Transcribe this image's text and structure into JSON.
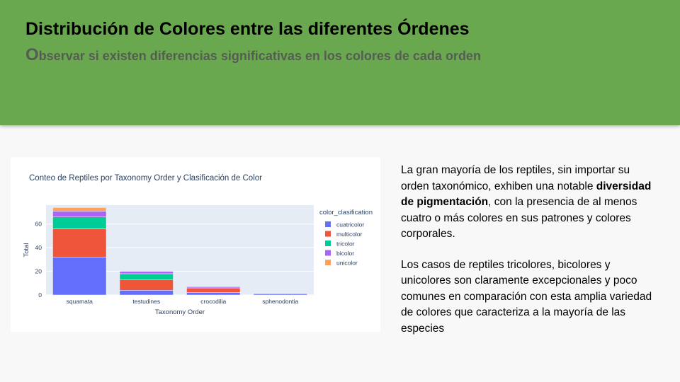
{
  "header": {
    "title": "Distribución de Colores entre las diferentes Órdenes",
    "subtitle_first": "O",
    "subtitle_rest": "bservar si existen diferencias significativas en los colores de cada orden"
  },
  "colors": {
    "header_bg": "#6aa84f",
    "plot_bg": "#e5ecf6",
    "cuatricolor": "#636efa",
    "multicolor": "#ef553b",
    "tricolor": "#00cc96",
    "bicolor": "#ab63fa",
    "unicolor": "#ffa15a"
  },
  "chart_data": {
    "type": "bar",
    "stacked": true,
    "title": "Conteo de Reptiles por Taxonomy Order y Clasificación de Color",
    "xlabel": "Taxonomy Order",
    "ylabel": "Total",
    "ylim": [
      0,
      76
    ],
    "yticks": [
      0,
      20,
      40,
      60
    ],
    "grid": true,
    "legend_title": "color_clasification",
    "legend_position": "right",
    "categories": [
      "squamata",
      "testudines",
      "crocodilia",
      "sphenodontia"
    ],
    "series": [
      {
        "name": "cuatricolor",
        "color": "#636efa",
        "values": [
          32,
          4,
          2,
          1
        ]
      },
      {
        "name": "multicolor",
        "color": "#ef553b",
        "values": [
          24,
          9,
          4,
          0
        ]
      },
      {
        "name": "tricolor",
        "color": "#00cc96",
        "values": [
          10,
          5,
          0,
          0
        ]
      },
      {
        "name": "bicolor",
        "color": "#ab63fa",
        "values": [
          5,
          2,
          1,
          0
        ]
      },
      {
        "name": "unicolor",
        "color": "#ffa15a",
        "values": [
          3,
          0,
          0,
          0
        ]
      }
    ]
  },
  "text": {
    "p1_a": "La gran mayoría de los reptiles, sin importar su orden taxonómico, exhiben una notable ",
    "p1_bold": "diversidad de pigmentación",
    "p1_b": ", con la presencia de al menos cuatro o más colores en sus patrones y colores corporales.",
    "p2": "Los casos de reptiles tricolores, bicolores y unicolores son claramente excepcionales y poco comunes en comparación con esta amplia variedad de colores que caracteriza a la mayoría de las especies"
  }
}
